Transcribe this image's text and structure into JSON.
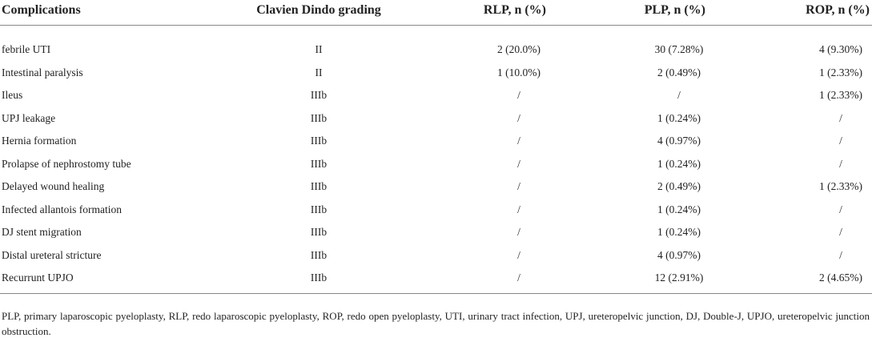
{
  "table": {
    "header": [
      "Complications",
      "Clavien Dindo grading",
      "RLP, n (%)",
      "PLP, n (%)",
      "ROP, n (%)"
    ],
    "rows": [
      [
        "febrile UTI",
        "II",
        "2 (20.0%)",
        "30 (7.28%)",
        "4 (9.30%)"
      ],
      [
        "Intestinal paralysis",
        "II",
        "1 (10.0%)",
        "2 (0.49%)",
        "1 (2.33%)"
      ],
      [
        "Ileus",
        "IIIb",
        "/",
        "/",
        "1 (2.33%)"
      ],
      [
        "UPJ leakage",
        "IIIb",
        "/",
        "1 (0.24%)",
        "/"
      ],
      [
        "Hernia formation",
        "IIIb",
        "/",
        "4 (0.97%)",
        "/"
      ],
      [
        "Prolapse of nephrostomy tube",
        "IIIb",
        "/",
        "1 (0.24%)",
        "/"
      ],
      [
        "Delayed wound healing",
        "IIIb",
        "/",
        "2 (0.49%)",
        "1 (2.33%)"
      ],
      [
        "Infected allantois formation",
        "IIIb",
        "/",
        "1 (0.24%)",
        "/"
      ],
      [
        "DJ stent migration",
        "IIIb",
        "/",
        "1 (0.24%)",
        "/"
      ],
      [
        "Distal ureteral stricture",
        "IIIb",
        "/",
        "4 (0.97%)",
        "/"
      ],
      [
        "Recurrunt UPJO",
        "IIIb",
        "/",
        "12 (2.91%)",
        "2 (4.65%)"
      ]
    ],
    "footnote": "PLP, primary laparoscopic pyeloplasty, RLP, redo laparoscopic pyeloplasty, ROP, redo open pyeloplasty, UTI, urinary tract infection, UPJ, ureteropelvic junction, DJ, Double-J, UPJO, ureteropelvic junction obstruction."
  }
}
